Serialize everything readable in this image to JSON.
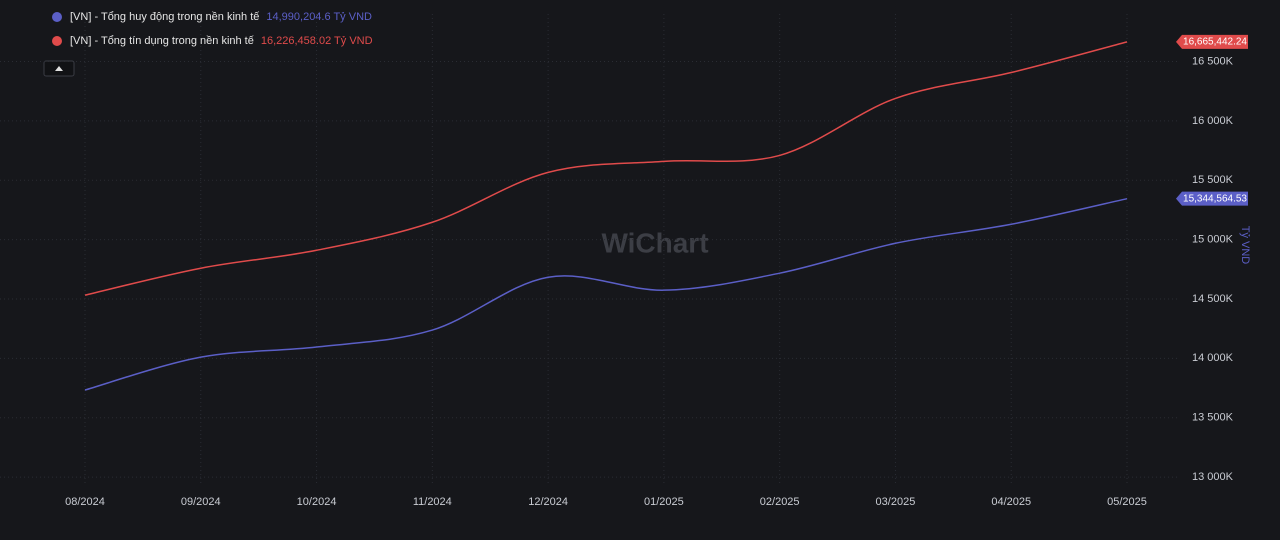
{
  "chart_data": {
    "type": "line",
    "categories": [
      "08/2024",
      "09/2024",
      "10/2024",
      "11/2024",
      "12/2024",
      "01/2025",
      "02/2025",
      "03/2025",
      "04/2025",
      "05/2025"
    ],
    "series": [
      {
        "name": "[VN] - Tổng huy động trong nền kinh tế",
        "legend_value": "14,990,204.6 Tỷ VND",
        "color": "#5b5fc7",
        "last_value_label": "15,344,564.53",
        "values": [
          13733000,
          14010000,
          14095000,
          14238000,
          14683000,
          14574000,
          14717000,
          14969000,
          15129000,
          15344564.53
        ]
      },
      {
        "name": "[VN] - Tổng tín dụng trong nền kinh tế",
        "legend_value": "16,226,458.02 Tỷ VND",
        "color": "#e04b4b",
        "last_value_label": "16,665,442.24",
        "values": [
          14532000,
          14759000,
          14910000,
          15146000,
          15566000,
          15659000,
          15709000,
          16189000,
          16407000,
          16665442.24
        ]
      }
    ],
    "ylabel": "Tỷ VND",
    "ylim": [
      12950000,
      16900000
    ],
    "yticks": [
      {
        "value": 13000000,
        "label": "13 000K"
      },
      {
        "value": 13500000,
        "label": "13 500K"
      },
      {
        "value": 14000000,
        "label": "14 000K"
      },
      {
        "value": 14500000,
        "label": "14 500K"
      },
      {
        "value": 15000000,
        "label": "15 000K"
      },
      {
        "value": 15500000,
        "label": "15 500K"
      },
      {
        "value": 16000000,
        "label": "16 000K"
      },
      {
        "value": 16500000,
        "label": "16 500K"
      }
    ],
    "watermark": "WiChart",
    "grid": true
  }
}
